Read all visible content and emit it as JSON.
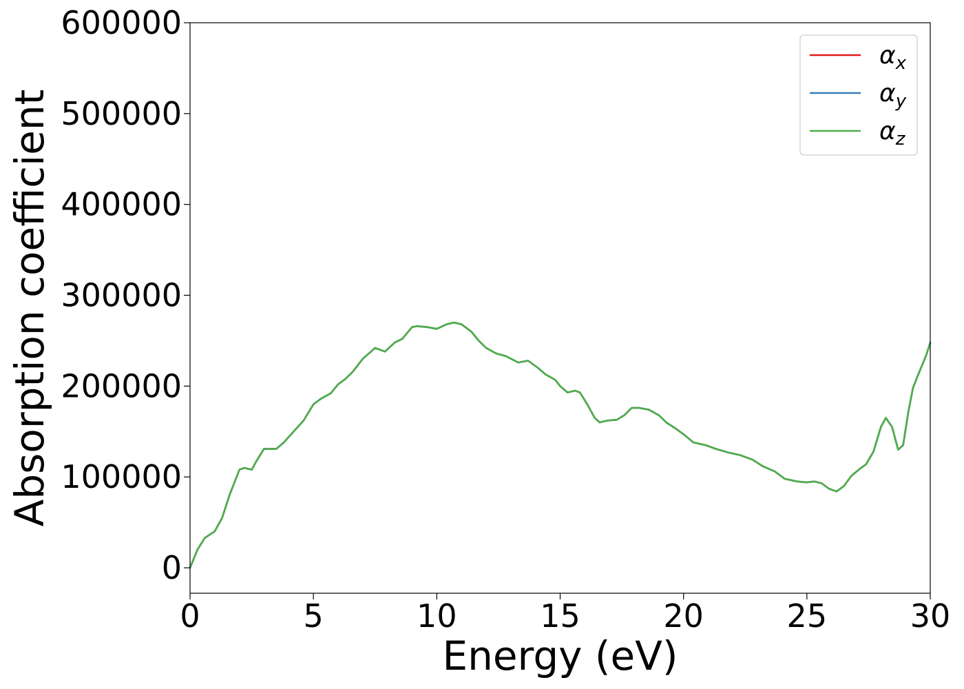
{
  "chart_data": {
    "type": "line",
    "title": "",
    "xlabel": "Energy (eV)",
    "ylabel": "Absorption coefficient",
    "xlim": [
      0,
      30
    ],
    "ylim": [
      -28000,
      600000
    ],
    "x_ticks": [
      0,
      5,
      10,
      15,
      20,
      25,
      30
    ],
    "x_tick_labels": [
      "0",
      "5",
      "10",
      "15",
      "20",
      "25",
      "30"
    ],
    "y_ticks": [
      0,
      100000,
      200000,
      300000,
      400000,
      500000,
      600000
    ],
    "y_tick_labels": [
      "0",
      "100000",
      "200000",
      "300000",
      "400000",
      "500000",
      "600000"
    ],
    "grid": false,
    "legend_position": "top-right",
    "x": [
      0,
      0.3,
      0.6,
      1.0,
      1.3,
      1.6,
      2.0,
      2.2,
      2.5,
      2.7,
      3.0,
      3.2,
      3.5,
      3.8,
      4.2,
      4.6,
      5.0,
      5.3,
      5.7,
      6.0,
      6.3,
      6.6,
      7.0,
      7.5,
      7.9,
      8.3,
      8.6,
      9.0,
      9.2,
      9.6,
      10.0,
      10.4,
      10.7,
      11.0,
      11.4,
      11.7,
      12.0,
      12.4,
      12.8,
      13.3,
      13.7,
      14.1,
      14.4,
      14.8,
      15.0,
      15.3,
      15.6,
      15.8,
      16.1,
      16.4,
      16.6,
      16.9,
      17.3,
      17.6,
      17.9,
      18.2,
      18.6,
      19.0,
      19.3,
      19.7,
      20.0,
      20.4,
      20.9,
      21.3,
      21.8,
      22.3,
      22.8,
      23.2,
      23.7,
      24.1,
      24.6,
      25.0,
      25.3,
      25.6,
      25.9,
      26.2,
      26.5,
      26.8,
      27.1,
      27.4,
      27.7,
      28.0,
      28.2,
      28.45,
      28.7,
      28.9,
      29.1,
      29.3,
      29.5,
      29.7,
      29.85,
      30.0
    ],
    "series": [
      {
        "name": "α_x",
        "label_main": "α",
        "label_sub": "x",
        "color": "#e41a1c",
        "y": [
          0,
          20000,
          33000,
          40000,
          55000,
          80000,
          108000,
          110000,
          108000,
          118000,
          131000,
          131000,
          131000,
          138000,
          150000,
          162000,
          180000,
          186000,
          192000,
          202000,
          208000,
          216000,
          230000,
          242000,
          238000,
          248000,
          252000,
          265000,
          266000,
          265000,
          263000,
          268000,
          270000,
          268000,
          260000,
          250000,
          242000,
          236000,
          233000,
          226000,
          228000,
          220000,
          213000,
          207000,
          200000,
          193000,
          195000,
          193000,
          180000,
          165000,
          160000,
          162000,
          163000,
          168000,
          176000,
          176000,
          174000,
          168000,
          160000,
          153000,
          147000,
          138000,
          135000,
          131000,
          127000,
          124000,
          119000,
          112000,
          106000,
          98000,
          95000,
          94000,
          95000,
          93000,
          87000,
          84000,
          90000,
          101000,
          108000,
          114000,
          128000,
          155000,
          165000,
          155000,
          130000,
          135000,
          170000,
          198000,
          212000,
          225000,
          235000,
          248000
        ]
      },
      {
        "name": "α_y",
        "label_main": "α",
        "label_sub": "y",
        "color": "#377eb8",
        "y": [
          0,
          20000,
          33000,
          40000,
          55000,
          80000,
          108000,
          110000,
          108000,
          118000,
          131000,
          131000,
          131000,
          138000,
          150000,
          162000,
          180000,
          186000,
          192000,
          202000,
          208000,
          216000,
          230000,
          242000,
          238000,
          248000,
          252000,
          265000,
          266000,
          265000,
          263000,
          268000,
          270000,
          268000,
          260000,
          250000,
          242000,
          236000,
          233000,
          226000,
          228000,
          220000,
          213000,
          207000,
          200000,
          193000,
          195000,
          193000,
          180000,
          165000,
          160000,
          162000,
          163000,
          168000,
          176000,
          176000,
          174000,
          168000,
          160000,
          153000,
          147000,
          138000,
          135000,
          131000,
          127000,
          124000,
          119000,
          112000,
          106000,
          98000,
          95000,
          94000,
          95000,
          93000,
          87000,
          84000,
          90000,
          101000,
          108000,
          114000,
          128000,
          155000,
          165000,
          155000,
          130000,
          135000,
          170000,
          198000,
          212000,
          225000,
          235000,
          248000
        ]
      },
      {
        "name": "α_z",
        "label_main": "α",
        "label_sub": "z",
        "color": "#4daf4a",
        "y": [
          0,
          20000,
          33000,
          40000,
          55000,
          80000,
          108000,
          110000,
          108000,
          118000,
          131000,
          131000,
          131000,
          138000,
          150000,
          162000,
          180000,
          186000,
          192000,
          202000,
          208000,
          216000,
          230000,
          242000,
          238000,
          248000,
          252000,
          265000,
          266000,
          265000,
          263000,
          268000,
          270000,
          268000,
          260000,
          250000,
          242000,
          236000,
          233000,
          226000,
          228000,
          220000,
          213000,
          207000,
          200000,
          193000,
          195000,
          193000,
          180000,
          165000,
          160000,
          162000,
          163000,
          168000,
          176000,
          176000,
          174000,
          168000,
          160000,
          153000,
          147000,
          138000,
          135000,
          131000,
          127000,
          124000,
          119000,
          112000,
          106000,
          98000,
          95000,
          94000,
          95000,
          93000,
          87000,
          84000,
          90000,
          101000,
          108000,
          114000,
          128000,
          155000,
          165000,
          155000,
          130000,
          135000,
          170000,
          198000,
          212000,
          225000,
          235000,
          248000
        ]
      }
    ]
  }
}
